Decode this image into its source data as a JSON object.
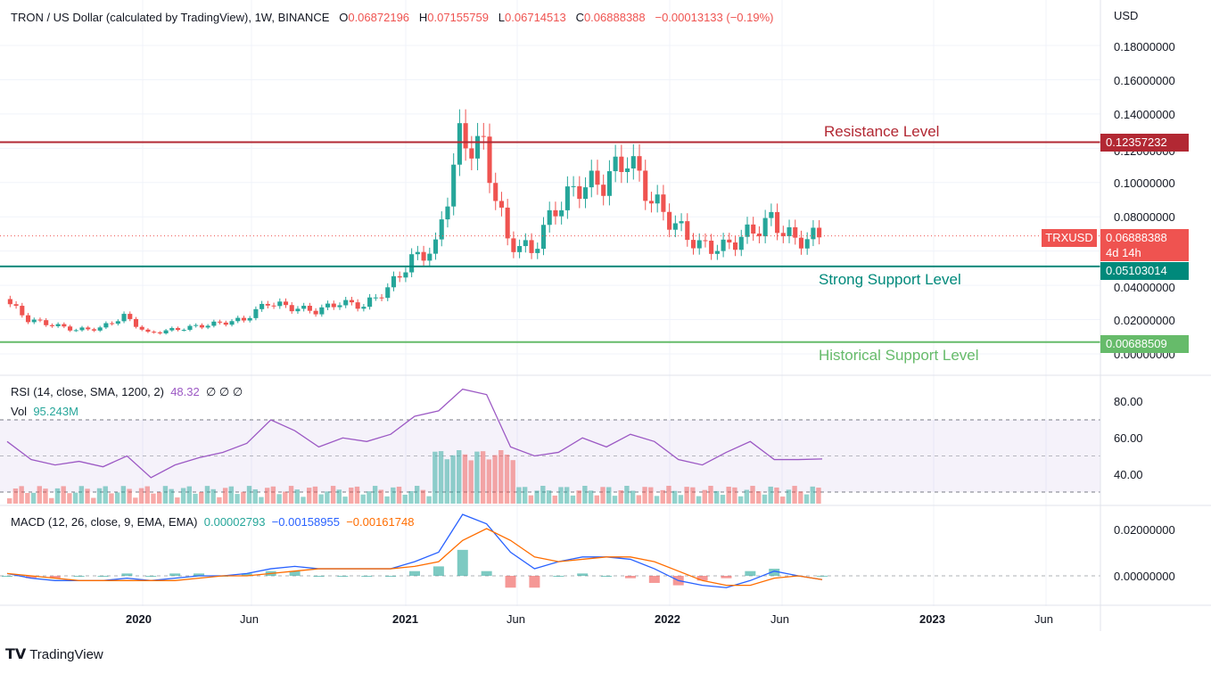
{
  "header": {
    "title": "TRON / US Dollar (calculated by TradingView), 1W, BINANCE",
    "o_label": "O",
    "o": "0.06872196",
    "h_label": "H",
    "h": "0.07155759",
    "l_label": "L",
    "l": "0.06714513",
    "c_label": "C",
    "c": "0.06888388",
    "change": "−0.00013133 (−0.19%)"
  },
  "price_axis": {
    "currency": "USD",
    "ticks": [
      "0.18000000",
      "0.16000000",
      "0.14000000",
      "0.12000000",
      "0.10000000",
      "0.08000000",
      "0.04000000",
      "0.02000000",
      "0.00000000"
    ]
  },
  "levels": {
    "resistance": {
      "label": "Resistance Level",
      "value": "0.12357232",
      "color": "#b22833"
    },
    "strong_support": {
      "label": "Strong Support Level",
      "value": "0.05103014",
      "color": "#00897b"
    },
    "historical_support": {
      "label": "Historical Support Level",
      "value": "0.00688509",
      "color": "#66bb6a"
    }
  },
  "current_price": {
    "symbol": "TRXUSD",
    "value": "0.06888388",
    "countdown": "4d 14h",
    "color": "#ef5350"
  },
  "rsi": {
    "label": "RSI (14, close, SMA, 1200, 2)",
    "value": "48.32",
    "extra": "∅  ∅  ∅",
    "vol_label": "Vol",
    "vol_value": "95.243M",
    "ticks": [
      "80.00",
      "60.00",
      "40.00"
    ]
  },
  "macd": {
    "label": "MACD (12, 26, close, 9, EMA, EMA)",
    "hist": "0.00002793",
    "macd": "−0.00158955",
    "signal": "−0.00161748",
    "ticks": [
      "0.02000000",
      "0.00000000"
    ]
  },
  "time_axis": [
    "2020",
    "Jun",
    "2021",
    "Jun",
    "2022",
    "Jun",
    "2023",
    "Jun"
  ],
  "footer": {
    "brand": "TradingView"
  },
  "chart_data": {
    "type": "candlestick",
    "timeframe": "1W",
    "x_range": [
      "2019-09",
      "2022-07"
    ],
    "ylim": [
      0,
      0.185
    ],
    "series": [
      {
        "name": "TRXUSD weekly close (approx)",
        "x": [
          "2019-09",
          "2019-10",
          "2019-11",
          "2019-12",
          "2020-01",
          "2020-02",
          "2020-03",
          "2020-04",
          "2020-05",
          "2020-06",
          "2020-07",
          "2020-08",
          "2020-09",
          "2020-10",
          "2020-11",
          "2020-12",
          "2021-01",
          "2021-02",
          "2021-03",
          "2021-04",
          "2021-05",
          "2021-06",
          "2021-07",
          "2021-08",
          "2021-09",
          "2021-10",
          "2021-11",
          "2021-12",
          "2022-01",
          "2022-02",
          "2022-03",
          "2022-04",
          "2022-05",
          "2022-06",
          "2022-07"
        ],
        "values": [
          0.032,
          0.02,
          0.017,
          0.014,
          0.015,
          0.022,
          0.012,
          0.014,
          0.016,
          0.018,
          0.02,
          0.03,
          0.027,
          0.025,
          0.03,
          0.028,
          0.038,
          0.055,
          0.062,
          0.125,
          0.12,
          0.066,
          0.06,
          0.085,
          0.098,
          0.1,
          0.115,
          0.09,
          0.075,
          0.063,
          0.062,
          0.07,
          0.078,
          0.066,
          0.0689
        ]
      }
    ],
    "rsi_values": [
      58,
      48,
      45,
      47,
      44,
      50,
      38,
      45,
      49,
      52,
      57,
      70,
      64,
      55,
      60,
      58,
      62,
      72,
      75,
      87,
      84,
      55,
      50,
      52,
      60,
      55,
      62,
      58,
      48,
      45,
      52,
      58,
      48,
      48,
      48.32
    ],
    "macd_values": [
      0.001,
      -0.001,
      -0.002,
      -0.002,
      -0.002,
      -0.001,
      -0.002,
      -0.001,
      0.0,
      0.0,
      0.001,
      0.003,
      0.004,
      0.003,
      0.003,
      0.003,
      0.003,
      0.006,
      0.01,
      0.026,
      0.022,
      0.01,
      0.003,
      0.006,
      0.008,
      0.008,
      0.007,
      0.003,
      -0.002,
      -0.004,
      -0.005,
      -0.002,
      0.002,
      0.0,
      -0.00159
    ],
    "signal_values": [
      0.001,
      0.0,
      -0.001,
      -0.002,
      -0.002,
      -0.002,
      -0.002,
      -0.002,
      -0.001,
      0.0,
      0.0,
      0.001,
      0.002,
      0.003,
      0.003,
      0.003,
      0.003,
      0.004,
      0.006,
      0.015,
      0.02,
      0.015,
      0.008,
      0.006,
      0.007,
      0.008,
      0.008,
      0.006,
      0.002,
      -0.002,
      -0.004,
      -0.004,
      -0.001,
      0.0,
      -0.00162
    ]
  }
}
